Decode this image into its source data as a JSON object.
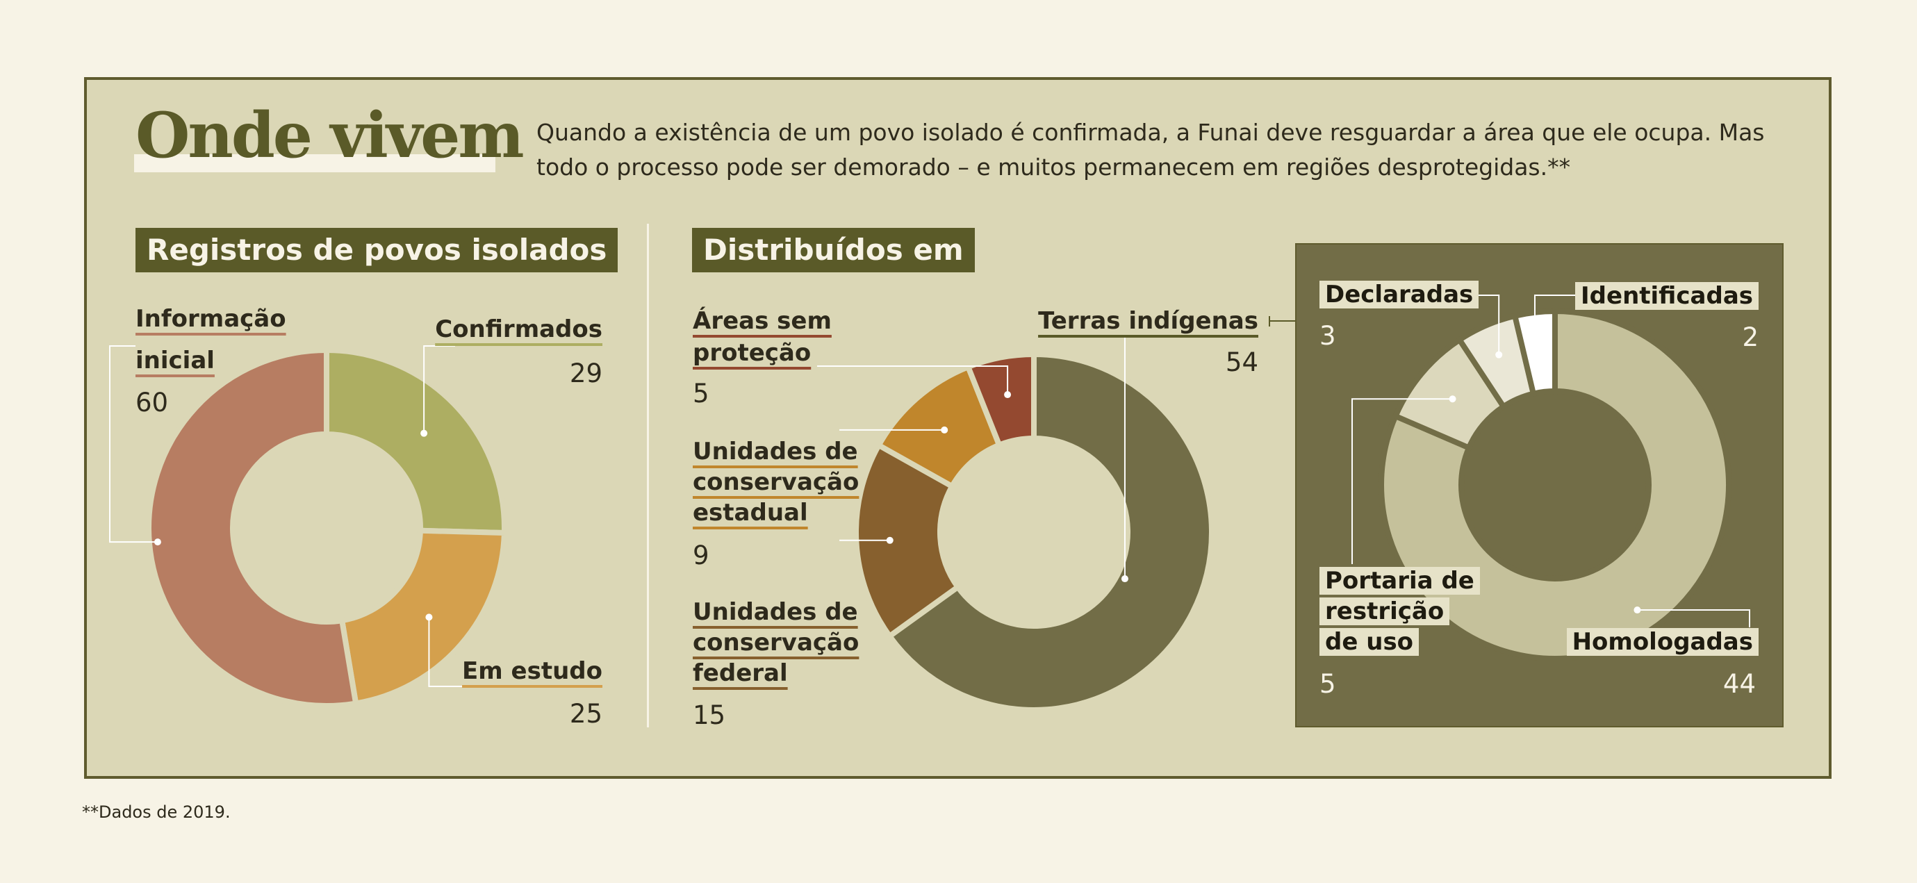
{
  "header": {
    "title": "Onde vivem",
    "intro": "Quando a existência de um povo isolado é confirmada, a Funai deve resguardar a área que ele ocupa. Mas todo o processo pode ser demorado – e muitos permanecem em regiões desprotegidas.**"
  },
  "footnote": "**Dados de 2019.",
  "colors": {
    "background": "#f7f3e6",
    "panel": "#dbd7b6",
    "olive_dark": "#5a5a28",
    "inset": "#726d47",
    "info": "#b77d62",
    "confirmados": "#adae62",
    "estudo": "#d4a04d",
    "terras": "#726d47",
    "federal": "#87602e",
    "estadual": "#c0862c",
    "sem_protecao": "#944930",
    "homologadas": "#c5c19b",
    "portaria": "#dcd8bc",
    "declaradas": "#eae7d6",
    "identificadas": "#ffffff"
  },
  "chart_data": [
    {
      "type": "pie",
      "title": "Registros de povos isolados",
      "labels": [
        "Confirmados",
        "Em estudo",
        "Informação inicial"
      ],
      "values": [
        29,
        25,
        60
      ],
      "label_lines": [
        [
          "Confirmados"
        ],
        [
          "Em estudo"
        ],
        [
          "Informação",
          "inicial"
        ]
      ],
      "value_text": [
        "29",
        "25",
        "60"
      ]
    },
    {
      "type": "pie",
      "title": "Distribuídos em",
      "labels": [
        "Terras indígenas",
        "Unidades de conservação federal",
        "Unidades de conservação estadual",
        "Áreas sem proteção"
      ],
      "values": [
        54,
        15,
        9,
        5
      ],
      "label_lines": [
        [
          "Terras indígenas"
        ],
        [
          "Unidades de",
          "conservação",
          "federal"
        ],
        [
          "Unidades de",
          "conservação",
          "estadual"
        ],
        [
          "Áreas sem",
          "proteção"
        ]
      ],
      "value_text": [
        "54",
        "15",
        "9",
        "5"
      ]
    },
    {
      "type": "pie",
      "title": "Terras indígenas",
      "labels": [
        "Homologadas",
        "Portaria de restrição de uso",
        "Declaradas",
        "Identificadas"
      ],
      "values": [
        44,
        5,
        3,
        2
      ],
      "label_lines": [
        [
          "Homologadas"
        ],
        [
          "Portaria de",
          "restrição",
          "de uso"
        ],
        [
          "Declaradas"
        ],
        [
          "Identificadas"
        ]
      ],
      "value_text": [
        "44",
        "5",
        "3",
        "2"
      ]
    }
  ]
}
